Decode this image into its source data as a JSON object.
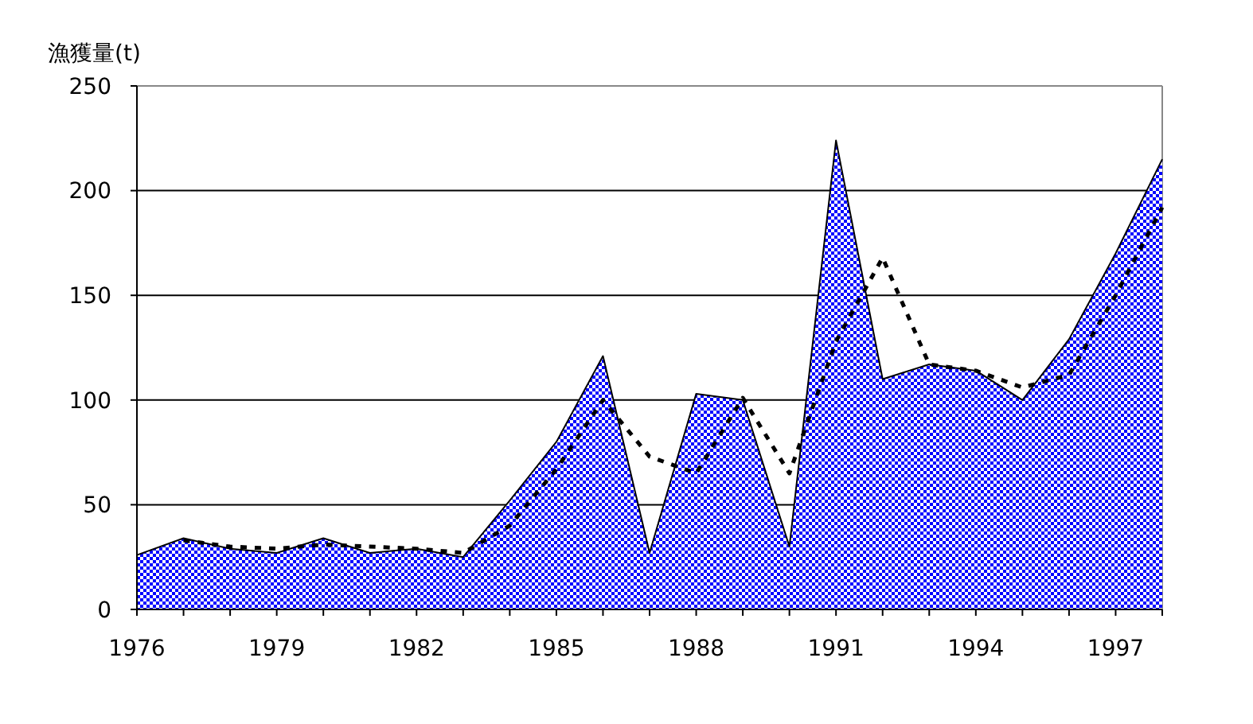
{
  "chart_data": {
    "type": "area",
    "ylabel": "漁獲量(t)",
    "x": [
      1976,
      1977,
      1978,
      1979,
      1980,
      1981,
      1982,
      1983,
      1984,
      1985,
      1986,
      1987,
      1988,
      1989,
      1990,
      1991,
      1992,
      1993,
      1994,
      1995,
      1996,
      1997,
      1998
    ],
    "series": [
      {
        "color": "#0000ff",
        "values": [
          26,
          34,
          29,
          27,
          34,
          27,
          29,
          25,
          52,
          80,
          121,
          27,
          103,
          100,
          30,
          224,
          110,
          117,
          114,
          100,
          129,
          170,
          215
        ]
      },
      {
        "type": "line",
        "color": "#000000",
        "line_style": "dashed",
        "x": [
          1977,
          1978,
          1979,
          1980,
          1981,
          1982,
          1983,
          1984,
          1985,
          1986,
          1987,
          1988,
          1989,
          1990,
          1991,
          1992,
          1993,
          1994,
          1995,
          1996,
          1997,
          1998
        ],
        "values": [
          33,
          30,
          29,
          31,
          30,
          29,
          27,
          40,
          67,
          100,
          73,
          65,
          101,
          65,
          128,
          168,
          117,
          114,
          106,
          112,
          150,
          192
        ]
      }
    ],
    "xlim": [
      1976,
      1998
    ],
    "xticks": [
      1976,
      {
        "value": 1977,
        "label": null
      },
      {
        "value": 1978,
        "label": null
      },
      1979,
      {
        "value": 1980,
        "label": null
      },
      {
        "value": 1981,
        "label": null
      },
      1982,
      {
        "value": 1983,
        "label": null
      },
      {
        "value": 1984,
        "label": null
      },
      1985,
      {
        "value": 1986,
        "label": null
      },
      {
        "value": 1987,
        "label": null
      },
      1988,
      {
        "value": 1989,
        "label": null
      },
      {
        "value": 1990,
        "label": null
      },
      1991,
      {
        "value": 1992,
        "label": null
      },
      {
        "value": 1993,
        "label": null
      },
      1994,
      {
        "value": 1995,
        "label": null
      },
      {
        "value": 1996,
        "label": null
      },
      1997,
      {
        "value": 1998,
        "label": null
      }
    ],
    "ylim": [
      0,
      250
    ],
    "yticks": [
      0,
      50,
      100,
      150,
      200,
      250
    ],
    "grid": "y"
  }
}
